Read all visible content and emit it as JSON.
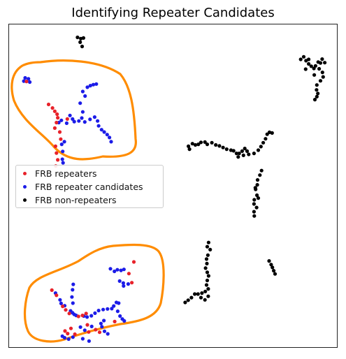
{
  "chart_data": {
    "type": "scatter",
    "title": "Identifying Repeater Candidates",
    "xlabel": "",
    "ylabel": "",
    "xlim": [
      0,
      100
    ],
    "ylim": [
      0,
      100
    ],
    "axes_ticks": "none",
    "legend_position": "center-left",
    "series": [
      {
        "name": "FRB repeaters",
        "color": "#e8222a",
        "points": [
          [
            5.5,
            82.2
          ],
          [
            12.2,
            75.1
          ],
          [
            13.4,
            74.0
          ],
          [
            14.1,
            73.0
          ],
          [
            14.8,
            72.1
          ],
          [
            15.0,
            71.0
          ],
          [
            14.6,
            69.5
          ],
          [
            14.1,
            67.8
          ],
          [
            15.6,
            66.6
          ],
          [
            15.9,
            64.4
          ],
          [
            14.3,
            62.2
          ],
          [
            14.6,
            60.1
          ],
          [
            15.0,
            58.0
          ],
          [
            14.4,
            56.1
          ],
          [
            17.9,
            70.6
          ],
          [
            38.1,
            26.5
          ],
          [
            37.5,
            20.1
          ],
          [
            36.6,
            22.9
          ],
          [
            14.6,
            16.2
          ],
          [
            16.5,
            12.8
          ],
          [
            17.4,
            11.7
          ],
          [
            18.5,
            10.6
          ],
          [
            21.3,
            9.7
          ],
          [
            22.5,
            10.0
          ],
          [
            23.6,
            10.6
          ],
          [
            24.0,
            7.1
          ],
          [
            24.4,
            4.9
          ],
          [
            26.5,
            5.6
          ],
          [
            27.7,
            4.8
          ],
          [
            18.0,
            4.4
          ],
          [
            17.2,
            5.2
          ],
          [
            19.0,
            6.0
          ],
          [
            20.2,
            4.2
          ],
          [
            32.3,
            8.1
          ],
          [
            13.2,
            17.8
          ]
        ]
      },
      {
        "name": "FRB repeater candidates",
        "color": "#1c1ce8",
        "points": [
          [
            4.7,
            82.3
          ],
          [
            5.1,
            83.3
          ],
          [
            6.1,
            83.0
          ],
          [
            6.5,
            82.0
          ],
          [
            24.0,
            80.4
          ],
          [
            24.9,
            80.9
          ],
          [
            25.8,
            81.2
          ],
          [
            26.7,
            81.4
          ],
          [
            22.6,
            79.1
          ],
          [
            23.3,
            77.7
          ],
          [
            21.8,
            75.5
          ],
          [
            22.6,
            72.8
          ],
          [
            22.3,
            70.9
          ],
          [
            17.7,
            69.3
          ],
          [
            18.7,
            71.7
          ],
          [
            19.5,
            70.6
          ],
          [
            20.0,
            69.8
          ],
          [
            21.4,
            70.0
          ],
          [
            23.2,
            69.7
          ],
          [
            24.8,
            70.5
          ],
          [
            26.2,
            71.2
          ],
          [
            27.1,
            70.0
          ],
          [
            27.4,
            68.5
          ],
          [
            28.3,
            67.3
          ],
          [
            29.1,
            66.6
          ],
          [
            30.0,
            65.8
          ],
          [
            30.7,
            64.9
          ],
          [
            31.2,
            63.6
          ],
          [
            15.3,
            69.5
          ],
          [
            16.1,
            70.2
          ],
          [
            16.6,
            57.1
          ],
          [
            16.4,
            58.2
          ],
          [
            31.0,
            24.4
          ],
          [
            32.2,
            23.6
          ],
          [
            33.1,
            24.1
          ],
          [
            34.2,
            23.9
          ],
          [
            35.1,
            24.2
          ],
          [
            33.8,
            20.6
          ],
          [
            34.9,
            20.0
          ],
          [
            36.4,
            19.7
          ],
          [
            35.0,
            19.1
          ],
          [
            14.3,
            16.9
          ],
          [
            15.7,
            14.8
          ],
          [
            16.0,
            13.7
          ],
          [
            17.1,
            13.0
          ],
          [
            18.9,
            11.4
          ],
          [
            19.5,
            10.8
          ],
          [
            20.0,
            10.3
          ],
          [
            20.6,
            10.0
          ],
          [
            19.6,
            13.8
          ],
          [
            19.3,
            15.7
          ],
          [
            19.5,
            17.9
          ],
          [
            19.7,
            19.6
          ],
          [
            22.9,
            9.8
          ],
          [
            23.9,
            9.5
          ],
          [
            25.2,
            9.9
          ],
          [
            26.3,
            10.7
          ],
          [
            27.4,
            11.5
          ],
          [
            28.8,
            11.8
          ],
          [
            30.1,
            12.0
          ],
          [
            31.4,
            12.1
          ],
          [
            32.0,
            12.9
          ],
          [
            32.8,
            14.0
          ],
          [
            33.5,
            13.8
          ],
          [
            33.2,
            11.3
          ],
          [
            33.9,
            9.8
          ],
          [
            34.6,
            8.9
          ],
          [
            35.2,
            8.3
          ],
          [
            29.0,
            8.4
          ],
          [
            28.1,
            7.5
          ],
          [
            28.4,
            6.5
          ],
          [
            29.2,
            5.1
          ],
          [
            30.2,
            4.3
          ],
          [
            25.3,
            6.6
          ],
          [
            24.5,
            2.1
          ],
          [
            22.6,
            2.8
          ],
          [
            19.6,
            3.3
          ],
          [
            18.3,
            2.7
          ],
          [
            17.1,
            3.1
          ],
          [
            16.4,
            3.6
          ],
          [
            23.2,
            5.4
          ],
          [
            21.9,
            6.4
          ],
          [
            16.5,
            60.6
          ],
          [
            16.2,
            62.8
          ],
          [
            17.0,
            63.6
          ]
        ]
      },
      {
        "name": "FRB non-repeaters",
        "color": "#000000",
        "points": [
          [
            21.0,
            95.8
          ],
          [
            22.0,
            95.4
          ],
          [
            22.8,
            95.6
          ],
          [
            21.8,
            94.3
          ],
          [
            22.4,
            93.0
          ],
          [
            88.8,
            89.0
          ],
          [
            89.7,
            89.8
          ],
          [
            90.4,
            88.6
          ],
          [
            91.2,
            87.6
          ],
          [
            92.0,
            86.9
          ],
          [
            92.8,
            86.2
          ],
          [
            93.3,
            87.0
          ],
          [
            94.1,
            88.2
          ],
          [
            94.8,
            87.9
          ],
          [
            95.3,
            89.1
          ],
          [
            96.1,
            88.0
          ],
          [
            94.4,
            86.1
          ],
          [
            95.4,
            85.0
          ],
          [
            95.6,
            83.6
          ],
          [
            94.8,
            82.4
          ],
          [
            93.7,
            81.1
          ],
          [
            93.6,
            79.6
          ],
          [
            94.0,
            78.5
          ],
          [
            93.7,
            77.5
          ],
          [
            93.1,
            76.6
          ],
          [
            90.3,
            86.0
          ],
          [
            91.2,
            89.0
          ],
          [
            92.9,
            84.2
          ],
          [
            54.7,
            62.2
          ],
          [
            55.9,
            63.0
          ],
          [
            56.8,
            62.6
          ],
          [
            57.7,
            62.8
          ],
          [
            58.5,
            63.4
          ],
          [
            59.7,
            63.5
          ],
          [
            60.4,
            62.8
          ],
          [
            61.8,
            63.3
          ],
          [
            63.0,
            62.6
          ],
          [
            64.1,
            62.3
          ],
          [
            65.2,
            61.8
          ],
          [
            66.3,
            61.3
          ],
          [
            67.6,
            61.0
          ],
          [
            68.4,
            60.8
          ],
          [
            69.3,
            60.0
          ],
          [
            70.1,
            60.0
          ],
          [
            71.0,
            60.7
          ],
          [
            71.8,
            61.5
          ],
          [
            72.5,
            60.7
          ],
          [
            73.0,
            59.7
          ],
          [
            71.4,
            59.4
          ],
          [
            69.8,
            58.9
          ],
          [
            74.6,
            60.0
          ],
          [
            75.9,
            61.0
          ],
          [
            76.7,
            62.1
          ],
          [
            77.4,
            63.3
          ],
          [
            78.1,
            64.5
          ],
          [
            78.6,
            65.9
          ],
          [
            79.3,
            66.5
          ],
          [
            80.1,
            66.3
          ],
          [
            55.0,
            61.3
          ],
          [
            76.9,
            54.7
          ],
          [
            76.4,
            53.3
          ],
          [
            75.7,
            51.8
          ],
          [
            75.6,
            50.3
          ],
          [
            75.1,
            48.9
          ],
          [
            75.5,
            47.1
          ],
          [
            74.7,
            45.7
          ],
          [
            74.6,
            44.4
          ],
          [
            75.4,
            43.3
          ],
          [
            74.6,
            42.0
          ],
          [
            74.7,
            40.7
          ],
          [
            75.0,
            49.4
          ],
          [
            75.9,
            46.2
          ],
          [
            60.8,
            32.5
          ],
          [
            60.4,
            31.2
          ],
          [
            61.3,
            30.3
          ],
          [
            60.6,
            28.6
          ],
          [
            60.2,
            27.4
          ],
          [
            60.3,
            26.0
          ],
          [
            59.9,
            24.6
          ],
          [
            60.4,
            23.3
          ],
          [
            60.8,
            22.2
          ],
          [
            60.4,
            20.8
          ],
          [
            60.2,
            19.4
          ],
          [
            60.7,
            18.2
          ],
          [
            59.8,
            17.4
          ],
          [
            58.8,
            16.9
          ],
          [
            57.6,
            16.6
          ],
          [
            56.6,
            16.6
          ],
          [
            55.6,
            15.5
          ],
          [
            54.6,
            14.7
          ],
          [
            53.7,
            14.0
          ],
          [
            60.7,
            15.9
          ],
          [
            59.7,
            14.8
          ],
          [
            58.5,
            15.5
          ],
          [
            79.2,
            26.8
          ],
          [
            79.8,
            25.7
          ],
          [
            80.2,
            24.8
          ],
          [
            80.6,
            23.8
          ],
          [
            81.0,
            22.8
          ]
        ]
      }
    ]
  }
}
